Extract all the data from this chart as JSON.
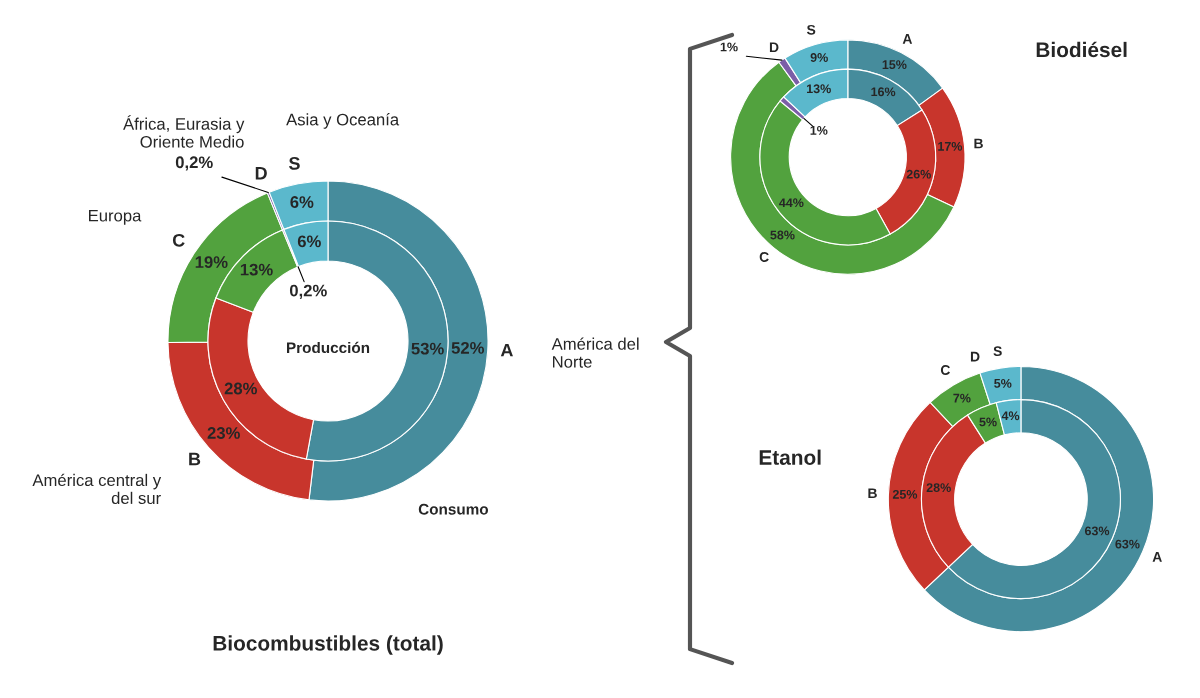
{
  "chart_data": [
    {
      "type": "donut",
      "title": "Biocombustibles (total)",
      "categories": [
        "A",
        "B",
        "C",
        "D",
        "S"
      ],
      "colors": [
        "#468c9c",
        "#c8352c",
        "#52a23e",
        "#7b5ea7",
        "#5bb8cc"
      ],
      "series": [
        {
          "name": "Consumo",
          "values": [
            52,
            23,
            19,
            0.2,
            6
          ],
          "value_labels": [
            "52%",
            "23%",
            "19%",
            "0,2%",
            "6%"
          ]
        },
        {
          "name": "Producción",
          "values": [
            53,
            28,
            13,
            0.2,
            6
          ],
          "value_labels": [
            "53%",
            "28%",
            "13%",
            "0,2%",
            "6%"
          ]
        }
      ],
      "annotations": [
        "América del\nNorte",
        "América central y\ndel sur",
        "Europa",
        "África, Eurasia y\nOriente Medio",
        "Asia y Oceanía"
      ]
    },
    {
      "type": "donut",
      "title": "Biodiésel",
      "categories": [
        "A",
        "B",
        "C",
        "D",
        "S"
      ],
      "colors": [
        "#468c9c",
        "#c8352c",
        "#52a23e",
        "#7b5ea7",
        "#5bb8cc"
      ],
      "series": [
        {
          "values": [
            15,
            17,
            58,
            1,
            9
          ],
          "value_labels": [
            "15%",
            "17%",
            "58%",
            "1%",
            "9%"
          ]
        },
        {
          "values": [
            16,
            26,
            44,
            1,
            13
          ],
          "value_labels": [
            "16%",
            "26%",
            "44%",
            "1%",
            "13%"
          ]
        }
      ]
    },
    {
      "type": "donut",
      "title": "Etanol",
      "categories": [
        "A",
        "B",
        "C",
        "D",
        "S"
      ],
      "colors": [
        "#468c9c",
        "#c8352c",
        "#52a23e",
        "#7b5ea7",
        "#5bb8cc"
      ],
      "series": [
        {
          "values": [
            63,
            25,
            7,
            0,
            5
          ],
          "value_labels": [
            "63%",
            "25%",
            "7%",
            null,
            "5%"
          ]
        },
        {
          "values": [
            63,
            28,
            5,
            0,
            4
          ],
          "value_labels": [
            "63%",
            "28%",
            "5%",
            null,
            "4%"
          ]
        }
      ]
    }
  ]
}
